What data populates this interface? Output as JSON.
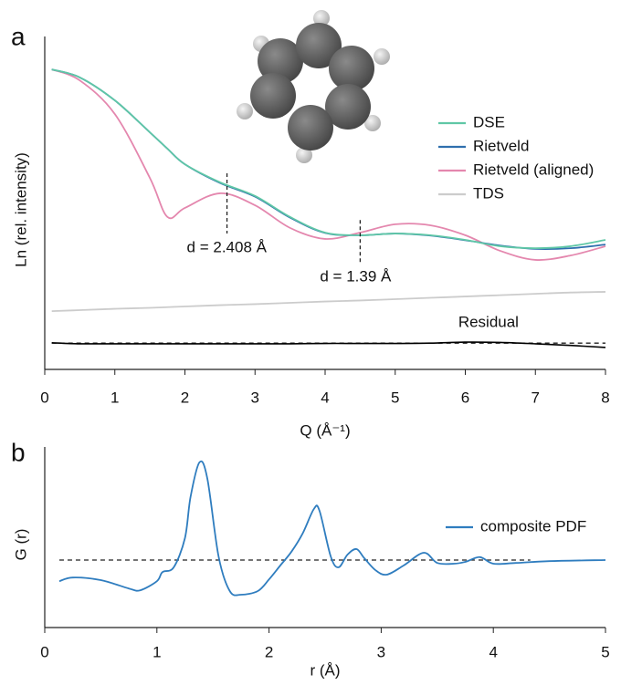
{
  "chart_data": [
    {
      "type": "line",
      "panel_label": "a",
      "xlabel": "Q (Å⁻¹)",
      "ylabel": "Ln (rel. intensity)",
      "x": [
        0.1,
        0.5,
        1,
        1.5,
        1.75,
        2,
        2.5,
        3,
        3.5,
        4,
        4.5,
        5,
        5.5,
        6,
        6.5,
        7,
        7.5,
        8
      ],
      "xlim": [
        0,
        8
      ],
      "xticks": [
        0,
        1,
        2,
        3,
        4,
        5,
        6,
        7,
        8
      ],
      "ylim": [
        0,
        10
      ],
      "yticks": [],
      "series": [
        {
          "name": "DSE",
          "color": "#5fc7a6",
          "values": [
            9.01,
            8.77,
            8.08,
            7.12,
            6.63,
            6.16,
            5.62,
            5.21,
            4.58,
            4.11,
            4.03,
            4.08,
            4.03,
            3.89,
            3.7,
            3.64,
            3.7,
            3.89
          ]
        },
        {
          "name": "Rietveld",
          "color": "#2f6fae",
          "values": [
            9.01,
            8.77,
            8.08,
            7.12,
            6.63,
            6.16,
            5.6,
            5.19,
            4.56,
            4.1,
            4.03,
            4.08,
            4.02,
            3.88,
            3.72,
            3.62,
            3.64,
            3.75
          ]
        },
        {
          "name": "Rietveld (aligned)",
          "color": "#e487ae",
          "values": [
            9.01,
            8.68,
            7.67,
            5.75,
            4.58,
            4.85,
            5.29,
            4.93,
            4.25,
            3.92,
            4.11,
            4.36,
            4.33,
            4.03,
            3.56,
            3.29,
            3.42,
            3.7
          ]
        },
        {
          "name": "TDS",
          "color": "#cccccc",
          "values": [
            1.75,
            1.78,
            1.82,
            1.85,
            1.87,
            1.89,
            1.93,
            1.96,
            2.0,
            2.04,
            2.07,
            2.11,
            2.15,
            2.19,
            2.23,
            2.27,
            2.31,
            2.33
          ]
        }
      ],
      "residual": {
        "name": "Residual",
        "color": "#000000",
        "values": [
          0.8,
          0.77,
          0.77,
          0.77,
          0.77,
          0.77,
          0.77,
          0.77,
          0.77,
          0.78,
          0.78,
          0.78,
          0.79,
          0.82,
          0.81,
          0.77,
          0.72,
          0.66
        ]
      },
      "reference_line": 0.79,
      "annotations": [
        {
          "text": "d = 2.408 Å",
          "x": 2.6
        },
        {
          "text": "d = 1.39 Å",
          "x": 4.5
        }
      ],
      "legend": "upper right"
    },
    {
      "type": "line",
      "panel_label": "b",
      "xlabel": "r (Å)",
      "ylabel": "G (r)",
      "x": [
        0.13,
        0.25,
        0.5,
        0.75,
        0.85,
        1.0,
        1.05,
        1.15,
        1.25,
        1.3,
        1.38,
        1.45,
        1.55,
        1.65,
        1.75,
        1.9,
        2.0,
        2.1,
        2.2,
        2.3,
        2.4,
        2.45,
        2.55,
        2.62,
        2.7,
        2.78,
        2.85,
        2.95,
        3.05,
        3.2,
        3.38,
        3.5,
        3.65,
        3.75,
        3.88,
        4.0,
        4.2,
        4.5,
        5.0
      ],
      "xlim": [
        0,
        5
      ],
      "xticks": [
        0,
        1,
        2,
        3,
        4,
        5
      ],
      "ylim": [
        -1.85,
        3.1
      ],
      "yticks": [],
      "series": [
        {
          "name": "composite PDF",
          "color": "#2f7dbf",
          "values": [
            -0.58,
            -0.48,
            -0.55,
            -0.78,
            -0.83,
            -0.58,
            -0.33,
            -0.2,
            0.6,
            1.73,
            2.68,
            2.23,
            0.1,
            -0.85,
            -0.95,
            -0.85,
            -0.53,
            -0.15,
            0.23,
            0.73,
            1.4,
            1.35,
            0.1,
            -0.2,
            0.15,
            0.3,
            0.05,
            -0.28,
            -0.4,
            -0.15,
            0.2,
            -0.08,
            -0.1,
            -0.05,
            0.08,
            -0.1,
            -0.08,
            -0.03,
            0
          ]
        }
      ],
      "reference_line": 0,
      "legend": "right"
    }
  ]
}
